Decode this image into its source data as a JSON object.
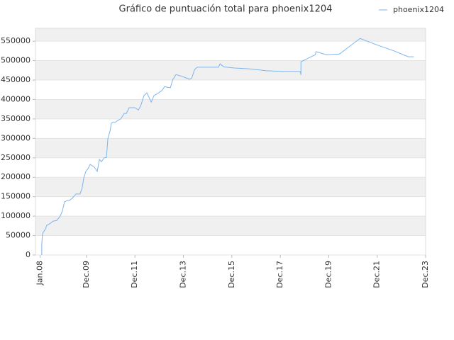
{
  "chart_data": {
    "type": "line",
    "title": "Gráfico de puntuación total para phoenix1204",
    "legend": "top-right",
    "grid": true,
    "series": [
      {
        "name": "phoenix1204",
        "color": "#7cb5ec",
        "x": [
          2008.07,
          2008.07,
          2008.1,
          2008.22,
          2008.28,
          2008.39,
          2008.54,
          2008.69,
          2008.83,
          2008.92,
          2009.01,
          2009.13,
          2009.21,
          2009.33,
          2009.48,
          2009.65,
          2009.74,
          2009.8,
          2009.89,
          2009.98,
          2010.07,
          2010.24,
          2010.36,
          2010.45,
          2010.53,
          2010.65,
          2010.74,
          2010.8,
          2010.89,
          2010.94,
          2011.03,
          2011.12,
          2011.21,
          2011.33,
          2011.47,
          2011.56,
          2011.68,
          2011.91,
          2012.06,
          2012.15,
          2012.29,
          2012.41,
          2012.59,
          2012.7,
          2012.85,
          2013.03,
          2013.14,
          2013.38,
          2013.47,
          2013.61,
          2013.88,
          2014.17,
          2014.26,
          2014.38,
          2014.49,
          2015.14,
          2015.37,
          2015.43,
          2015.58,
          2016.02,
          2016.6,
          2017.19,
          2017.34,
          2018.07,
          2018.74,
          2018.77,
          2018.77,
          2019.36,
          2019.39,
          2019.83,
          2020.36,
          2021.21,
          2021.88,
          2022.61,
          2023.2,
          2023.43
        ],
        "values": [
          0,
          27000,
          55000,
          67000,
          76500,
          80000,
          87000,
          89000,
          100000,
          113000,
          137000,
          140000,
          140000,
          146000,
          157000,
          157000,
          173000,
          197000,
          215000,
          222000,
          233000,
          226000,
          215000,
          246000,
          240000,
          250000,
          251000,
          300000,
          319000,
          339000,
          342000,
          342000,
          346000,
          350000,
          364000,
          364000,
          379000,
          379000,
          373000,
          383000,
          410000,
          417000,
          393000,
          410000,
          415000,
          423000,
          433000,
          430000,
          450000,
          464000,
          459000,
          452000,
          455000,
          477000,
          483000,
          483000,
          483000,
          492000,
          484000,
          481000,
          479000,
          475000,
          474000,
          472000,
          472000,
          463000,
          497000,
          515000,
          523000,
          515000,
          517000,
          557000,
          541000,
          525000,
          510000,
          510000
        ]
      }
    ],
    "xlim": [
      2007.81,
      2023.917
    ],
    "xticks": [
      {
        "value": 2008.0,
        "label": "Jan.08"
      },
      {
        "value": 2009.917,
        "label": "Dec.09"
      },
      {
        "value": 2011.917,
        "label": "Dec.11"
      },
      {
        "value": 2013.917,
        "label": "Dec.13"
      },
      {
        "value": 2015.917,
        "label": "Dec.15"
      },
      {
        "value": 2017.917,
        "label": "Dec.17"
      },
      {
        "value": 2019.917,
        "label": "Dec.19"
      },
      {
        "value": 2021.917,
        "label": "Dec.21"
      },
      {
        "value": 2023.917,
        "label": "Dec.23"
      }
    ],
    "ylim": [
      0,
      583000
    ],
    "yticks": [
      0,
      50000,
      100000,
      150000,
      200000,
      250000,
      300000,
      350000,
      400000,
      450000,
      500000,
      550000
    ]
  }
}
